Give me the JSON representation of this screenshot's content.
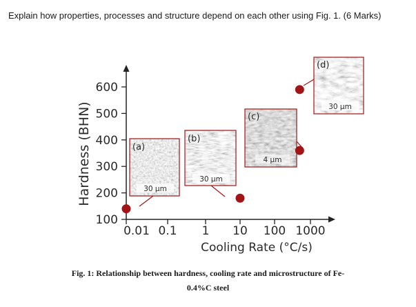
{
  "question": "Explain how properties, processes and structure depend on each other using Fig. 1. (6 Marks)",
  "chart_data": {
    "type": "scatter",
    "xlabel": "Cooling Rate (°C/s)",
    "ylabel": "Hardness (BHN)",
    "x_scale": "log",
    "xticks": [
      "0.01",
      "0.1",
      "1",
      "10",
      "100",
      "1000"
    ],
    "yticks": [
      100,
      200,
      300,
      400,
      500,
      600
    ],
    "ylim": [
      100,
      600
    ],
    "points": [
      {
        "x": 0.01,
        "y": 140
      },
      {
        "x": 10,
        "y": 180
      },
      {
        "x": 500,
        "y": 360
      },
      {
        "x": 500,
        "y": 590
      }
    ],
    "marker_color": "#a11516",
    "micrographs": [
      {
        "label": "(a)",
        "scale_bar": "30 µm"
      },
      {
        "label": "(b)",
        "scale_bar": "30 µm"
      },
      {
        "label": "(c)",
        "scale_bar": "4 µm"
      },
      {
        "label": "(d)",
        "scale_bar": "30 µm"
      }
    ]
  },
  "caption": {
    "line1": "Fig. 1: Relationship between hardness, cooling rate and microstructure of Fe-",
    "line2": "0.4%C steel"
  }
}
